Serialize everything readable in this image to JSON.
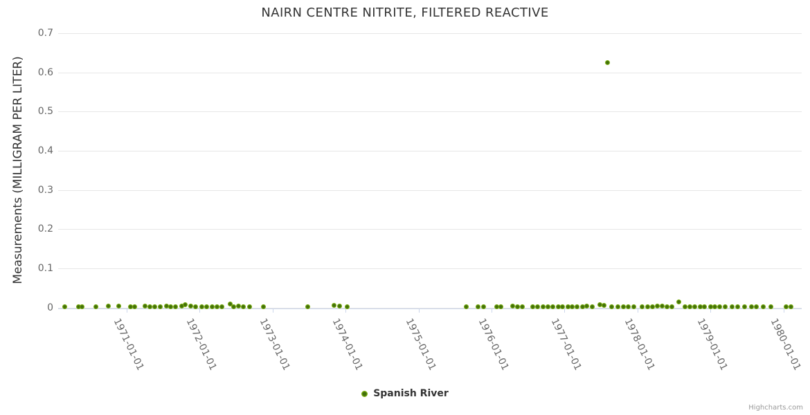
{
  "chart": {
    "credit_label": "Highcharts.com"
  },
  "chart_data": {
    "type": "scatter",
    "title": "NAIRN CENTRE NITRITE, FILTERED REACTIVE",
    "xlabel": "",
    "ylabel": "Measurements (MILLIGRAM PER LITER)",
    "x_axis_type": "datetime",
    "ylim": [
      0,
      0.7
    ],
    "yticks": [
      0,
      0.1,
      0.2,
      0.3,
      0.4,
      0.5,
      0.6,
      0.7
    ],
    "ytick_labels": [
      "0",
      "0.1",
      "0.2",
      "0.3",
      "0.4",
      "0.5",
      "0.6",
      "0.7"
    ],
    "xtick_labels": [
      "1971-01-01",
      "1972-01-01",
      "1973-01-01",
      "1974-01-01",
      "1975-01-01",
      "1976-01-01",
      "1977-01-01",
      "1978-01-01",
      "1979-01-01",
      "1980-01-01"
    ],
    "grid": true,
    "legend_position": "bottom-center",
    "marker": {
      "shape": "circle",
      "color_outer": "#86bb11",
      "color_inner": "#426f0b"
    },
    "series": [
      {
        "name": "Spanish River",
        "points": [
          [
            "1970-02-25",
            0.002
          ],
          [
            "1970-05-05",
            0.003
          ],
          [
            "1970-05-21",
            0.002
          ],
          [
            "1970-07-28",
            0.003
          ],
          [
            "1970-10-02",
            0.004
          ],
          [
            "1970-11-22",
            0.004
          ],
          [
            "1971-01-21",
            0.003
          ],
          [
            "1971-02-11",
            0.002
          ],
          [
            "1971-04-03",
            0.004
          ],
          [
            "1971-04-26",
            0.003
          ],
          [
            "1971-05-20",
            0.003
          ],
          [
            "1971-06-17",
            0.002
          ],
          [
            "1971-07-18",
            0.004
          ],
          [
            "1971-08-09",
            0.003
          ],
          [
            "1971-09-03",
            0.003
          ],
          [
            "1971-10-04",
            0.004
          ],
          [
            "1971-10-20",
            0.007
          ],
          [
            "1971-11-18",
            0.004
          ],
          [
            "1971-12-12",
            0.003
          ],
          [
            "1972-01-13",
            0.002
          ],
          [
            "1972-02-06",
            0.003
          ],
          [
            "1972-03-04",
            0.002
          ],
          [
            "1972-03-27",
            0.002
          ],
          [
            "1972-04-21",
            0.003
          ],
          [
            "1972-06-03",
            0.009
          ],
          [
            "1972-06-19",
            0.002
          ],
          [
            "1972-07-13",
            0.004
          ],
          [
            "1972-08-08",
            0.003
          ],
          [
            "1972-09-08",
            0.003
          ],
          [
            "1972-11-16",
            0.003
          ],
          [
            "1973-06-24",
            0.003
          ],
          [
            "1973-11-05",
            0.006
          ],
          [
            "1973-12-02",
            0.004
          ],
          [
            "1974-01-10",
            0.003
          ],
          [
            "1975-08-26",
            0.002
          ],
          [
            "1975-10-24",
            0.003
          ],
          [
            "1975-11-21",
            0.003
          ],
          [
            "1976-01-26",
            0.003
          ],
          [
            "1976-02-17",
            0.003
          ],
          [
            "1976-04-15",
            0.004
          ],
          [
            "1976-05-10",
            0.003
          ],
          [
            "1976-06-04",
            0.002
          ],
          [
            "1976-07-24",
            0.003
          ],
          [
            "1976-08-18",
            0.003
          ],
          [
            "1976-09-15",
            0.002
          ],
          [
            "1976-10-10",
            0.003
          ],
          [
            "1976-11-04",
            0.003
          ],
          [
            "1976-12-02",
            0.002
          ],
          [
            "1976-12-21",
            0.003
          ],
          [
            "1977-01-19",
            0.003
          ],
          [
            "1977-02-09",
            0.003
          ],
          [
            "1977-03-04",
            0.003
          ],
          [
            "1977-04-01",
            0.003
          ],
          [
            "1977-04-21",
            0.004
          ],
          [
            "1977-05-18",
            0.002
          ],
          [
            "1977-06-25",
            0.007
          ],
          [
            "1977-07-16",
            0.005
          ],
          [
            "1977-08-03",
            0.625
          ],
          [
            "1977-08-23",
            0.003
          ],
          [
            "1977-09-24",
            0.002
          ],
          [
            "1977-10-21",
            0.002
          ],
          [
            "1977-11-16",
            0.002
          ],
          [
            "1977-12-13",
            0.003
          ],
          [
            "1978-01-24",
            0.002
          ],
          [
            "1978-02-21",
            0.002
          ],
          [
            "1978-03-15",
            0.003
          ],
          [
            "1978-04-10",
            0.004
          ],
          [
            "1978-05-04",
            0.004
          ],
          [
            "1978-05-26",
            0.003
          ],
          [
            "1978-06-21",
            0.002
          ],
          [
            "1978-07-25",
            0.015
          ],
          [
            "1978-08-25",
            0.002
          ],
          [
            "1978-09-20",
            0.003
          ],
          [
            "1978-10-14",
            0.003
          ],
          [
            "1978-11-11",
            0.003
          ],
          [
            "1978-12-02",
            0.003
          ],
          [
            "1979-01-01",
            0.003
          ],
          [
            "1979-01-22",
            0.002
          ],
          [
            "1979-02-17",
            0.002
          ],
          [
            "1979-03-14",
            0.003
          ],
          [
            "1979-04-18",
            0.003
          ],
          [
            "1979-05-15",
            0.003
          ],
          [
            "1979-06-19",
            0.003
          ],
          [
            "1979-07-23",
            0.003
          ],
          [
            "1979-08-18",
            0.003
          ],
          [
            "1979-09-21",
            0.002
          ],
          [
            "1979-10-28",
            0.002
          ],
          [
            "1980-01-15",
            0.003
          ],
          [
            "1980-02-09",
            0.003
          ]
        ]
      }
    ]
  }
}
